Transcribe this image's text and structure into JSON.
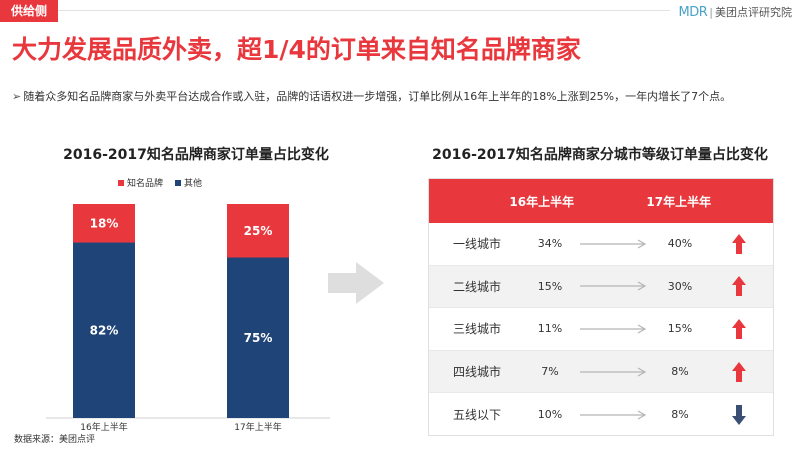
{
  "header": {
    "badge": "供给侧",
    "brand_logo": "MDR",
    "brand_sep": "|",
    "brand_name": "美团点评研究院"
  },
  "headline": "大力发展品质外卖，超1/4的订单来自知名品牌商家",
  "subline": "随着众多知名品牌商家与外卖平台达成合作或入驻，品牌的话语权进一步增强，订单比例从16年上半年的18%上涨到25%，一年内增长了7个点。",
  "source": "数据来源：美团点评",
  "colors": {
    "brand": "#e8383d",
    "other": "#1f4478",
    "arrow_gray": "#bdbdbd",
    "down": "#3a4f73"
  },
  "chart_data": {
    "type": "bar",
    "stacked": true,
    "title": "2016-2017知名品牌商家订单量占比变化",
    "categories": [
      "16年上半年",
      "17年上半年"
    ],
    "series": [
      {
        "name": "知名品牌",
        "values": [
          18,
          25
        ],
        "labels": [
          "18%",
          "25%"
        ]
      },
      {
        "name": "其他",
        "values": [
          82,
          75
        ],
        "labels": [
          "82%",
          "75%"
        ]
      }
    ],
    "ylim": [
      0,
      100
    ],
    "legend": "top",
    "grid": false
  },
  "table": {
    "title": "2016-2017知名品牌商家分城市等级订单量占比变化",
    "headers": [
      "16年上半年",
      "17年上半年"
    ],
    "rows": [
      {
        "city": "一线城市",
        "h16": "34%",
        "h17": "40%",
        "trend": "up"
      },
      {
        "city": "二线城市",
        "h16": "15%",
        "h17": "30%",
        "trend": "up"
      },
      {
        "city": "三线城市",
        "h16": "11%",
        "h17": "15%",
        "trend": "up"
      },
      {
        "city": "四线城市",
        "h16": "7%",
        "h17": "8%",
        "trend": "up"
      },
      {
        "city": "五线以下",
        "h16": "10%",
        "h17": "8%",
        "trend": "down"
      }
    ]
  }
}
